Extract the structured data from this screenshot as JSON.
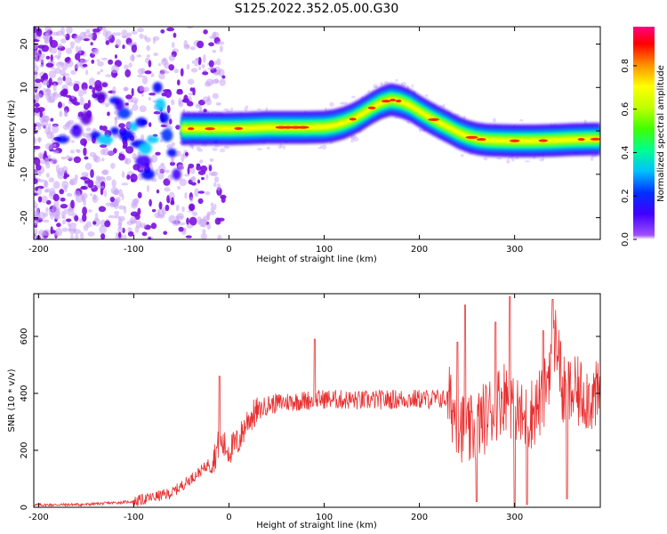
{
  "title": "S125.2022.352.05.00.G30",
  "chart_data": [
    {
      "type": "heatmap",
      "xlabel": "Height of straight line (km)",
      "ylabel": "Frequency (Hz)",
      "xlim": [
        -205,
        390
      ],
      "ylim": [
        -25,
        24
      ],
      "x_ticks": [
        -200,
        -100,
        0,
        100,
        200,
        300
      ],
      "y_ticks": [
        -20,
        -10,
        0,
        10,
        20
      ],
      "colorbar": {
        "label": "Normalized spectral amplitude",
        "range": [
          0,
          0.98
        ],
        "ticks": [
          0.0,
          0.2,
          0.4,
          0.6,
          0.8
        ],
        "tick_labels": [
          "0.0",
          "0.2",
          "0.4",
          "0.6",
          "0.8"
        ],
        "colormap": [
          "#8000ff",
          "#0000ff",
          "#00c8ff",
          "#00ff80",
          "#80ff00",
          "#ffff00",
          "#ffa000",
          "#ff0000",
          "#ff0080"
        ]
      },
      "ridge": {
        "x": [
          -50,
          -30,
          -10,
          0,
          20,
          40,
          60,
          80,
          100,
          110,
          120,
          130,
          140,
          150,
          160,
          170,
          180,
          190,
          200,
          210,
          220,
          230,
          240,
          250,
          260,
          270,
          280,
          300,
          320,
          340,
          360,
          380,
          390
        ],
        "y": [
          0.5,
          0.5,
          0.5,
          0.5,
          0.6,
          0.8,
          0.8,
          0.8,
          0.9,
          1.2,
          1.8,
          2.7,
          3.9,
          5.3,
          6.5,
          7.2,
          6.8,
          5.9,
          4.5,
          3.2,
          2.0,
          0.9,
          -0.3,
          -1.2,
          -1.8,
          -2.1,
          -2.2,
          -2.3,
          -2.3,
          -2.2,
          -2.0,
          -1.9,
          -1.9
        ]
      }
    },
    {
      "type": "line",
      "xlabel": "Height of straight line (km)",
      "ylabel": "SNR (10 * v/v)",
      "xlim": [
        -205,
        390
      ],
      "ylim": [
        0,
        750
      ],
      "x_ticks": [
        -200,
        -100,
        0,
        100,
        200,
        300
      ],
      "y_ticks": [
        0,
        200,
        400,
        600
      ],
      "line_color": "#e83030",
      "trend": {
        "x": [
          -205,
          -150,
          -100,
          -60,
          -40,
          -25,
          -15,
          -10,
          0,
          10,
          20,
          40,
          60,
          80,
          100,
          140,
          180,
          200,
          230,
          250,
          270,
          290,
          310,
          330,
          340,
          345,
          350,
          370,
          390
        ],
        "y": [
          8,
          10,
          20,
          50,
          100,
          140,
          180,
          230,
          200,
          230,
          310,
          360,
          370,
          375,
          380,
          375,
          380,
          380,
          380,
          250,
          320,
          400,
          300,
          380,
          560,
          600,
          400,
          400,
          380
        ]
      },
      "spikes": [
        {
          "x": -10,
          "y": 460
        },
        {
          "x": 90,
          "y": 590
        },
        {
          "x": 240,
          "y": 580
        },
        {
          "x": 248,
          "y": 710
        },
        {
          "x": 295,
          "y": 740
        },
        {
          "x": 340,
          "y": 730
        },
        {
          "x": 330,
          "y": 620
        },
        {
          "x": 280,
          "y": 650
        }
      ],
      "dips": [
        {
          "x": 260,
          "y": 20
        },
        {
          "x": 300,
          "y": 0
        },
        {
          "x": 313,
          "y": 10
        },
        {
          "x": 355,
          "y": 30
        }
      ]
    }
  ]
}
